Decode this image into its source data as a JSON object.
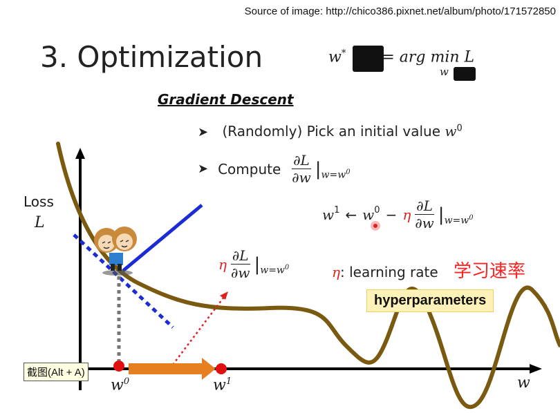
{
  "source_text": "Source of image: http://chico386.pixnet.net/album/photo/171572850",
  "title": "3. Optimization",
  "formula_top": {
    "lhs": "w",
    "sup": "*",
    "eq": "= arg min",
    "sub": "w",
    "fn": "L"
  },
  "subheading": "Gradient Descent",
  "bullets": [
    {
      "text": "(Randomly) Pick an initial value",
      "math": "w",
      "sup": "0"
    },
    {
      "text": "Compute"
    }
  ],
  "derivative": {
    "num": "∂L",
    "den": "∂w",
    "eval": "|",
    "eval_sub": "w=w",
    "eval_sup": "0"
  },
  "update_rule": {
    "lhs": "w",
    "lhs_sup": "1",
    "arrow": "←",
    "w0": "w",
    "w0_sup": "0",
    "minus": "−",
    "eta": "η"
  },
  "step_label": {
    "eta": "η"
  },
  "learning_rate": {
    "eta": "η",
    "text": ": learning rate",
    "chinese": "学习速率"
  },
  "hyperparameters_label": "hyperparameters",
  "axis": {
    "y_label_1": "Loss",
    "y_label_2": "L",
    "x_label": "w",
    "w0": "w",
    "w0_sup": "0",
    "w1": "w",
    "w1_sup": "1"
  },
  "tooltip": "截图(Alt + A)",
  "colors": {
    "curve": "#7a5a10",
    "tangent": "#1b2bd6",
    "step_arrow": "#e67e22",
    "point": "#e01010",
    "dotted_red": "#e02020"
  },
  "icons": [
    "bullet-arrow-icon",
    "character-icon"
  ]
}
